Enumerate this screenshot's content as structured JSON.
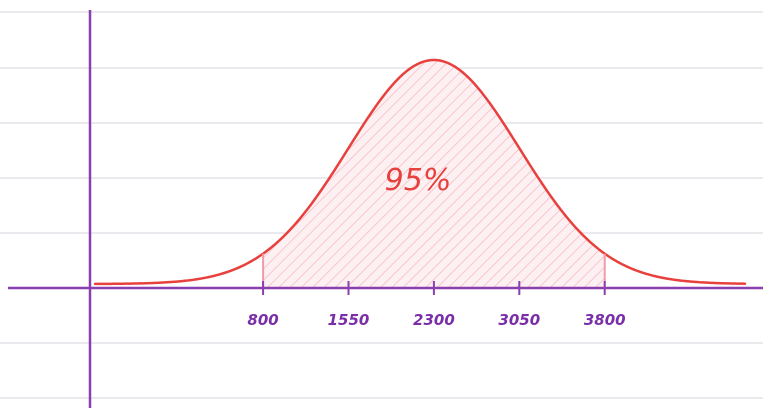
{
  "chart_data": {
    "type": "normal",
    "annotation": "95%",
    "xlim": [
      -1440,
      5190
    ],
    "xticks": [
      800,
      1550,
      2300,
      3050,
      3800
    ],
    "color": "#e8403c",
    "axis_color": "#8a3fb0"
  }
}
